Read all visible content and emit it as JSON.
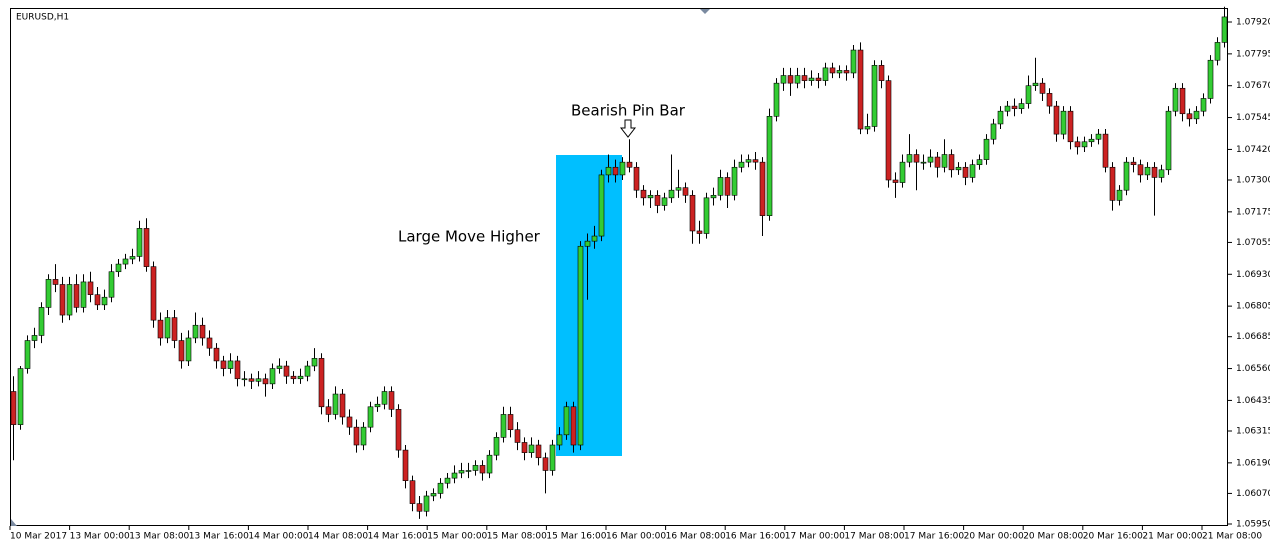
{
  "chart_data": {
    "type": "candlestick",
    "title": "EURUSD,H1",
    "annotations": [
      "Large Move Higher",
      "Bearish Pin Bar"
    ],
    "up_color": "#33cc33",
    "down_color": "#cc2222",
    "highlight_color": "#00bfff",
    "ylim": [
      1.0595,
      1.07975
    ],
    "yticks": [
      {
        "value": 1.0792,
        "label": "1.07920"
      },
      {
        "value": 1.07795,
        "label": "1.07795"
      },
      {
        "value": 1.0767,
        "label": "1.07670"
      },
      {
        "value": 1.07545,
        "label": "1.07545"
      },
      {
        "value": 1.0742,
        "label": "1.07420"
      },
      {
        "value": 1.073,
        "label": "1.07300"
      },
      {
        "value": 1.07175,
        "label": "1.07175"
      },
      {
        "value": 1.07055,
        "label": "1.07055"
      },
      {
        "value": 1.0693,
        "label": "1.06930"
      },
      {
        "value": 1.06805,
        "label": "1.06805"
      },
      {
        "value": 1.06685,
        "label": "1.06685"
      },
      {
        "value": 1.0656,
        "label": "1.06560"
      },
      {
        "value": 1.06435,
        "label": "1.06435"
      },
      {
        "value": 1.06315,
        "label": "1.06315"
      },
      {
        "value": 1.0619,
        "label": "1.06190"
      },
      {
        "value": 1.0607,
        "label": "1.06070"
      },
      {
        "value": 1.0595,
        "label": "1.05950"
      }
    ],
    "xticks": [
      "10 Mar 2017",
      "13 Mar 00:00",
      "13 Mar 08:00",
      "13 Mar 16:00",
      "14 Mar 00:00",
      "14 Mar 08:00",
      "14 Mar 16:00",
      "15 Mar 00:00",
      "15 Mar 08:00",
      "15 Mar 16:00",
      "16 Mar 00:00",
      "16 Mar 08:00",
      "16 Mar 16:00",
      "17 Mar 00:00",
      "17 Mar 08:00",
      "17 Mar 16:00",
      "20 Mar 00:00",
      "20 Mar 08:00",
      "20 Mar 16:00",
      "21 Mar 00:00",
      "21 Mar 08:00"
    ],
    "candles": [
      [
        1.0647,
        1.0653,
        1.062,
        1.0634
      ],
      [
        1.0634,
        1.0657,
        1.0632,
        1.0656
      ],
      [
        1.0656,
        1.0669,
        1.0654,
        1.0667
      ],
      [
        1.0667,
        1.0672,
        1.0664,
        1.0669
      ],
      [
        1.0669,
        1.0682,
        1.0666,
        1.068
      ],
      [
        1.068,
        1.0693,
        1.0677,
        1.0691
      ],
      [
        1.0691,
        1.0697,
        1.0686,
        1.0689
      ],
      [
        1.0689,
        1.0692,
        1.0674,
        1.0677
      ],
      [
        1.0677,
        1.0692,
        1.0675,
        1.0689
      ],
      [
        1.0689,
        1.0693,
        1.0678,
        1.068
      ],
      [
        1.068,
        1.0693,
        1.0678,
        1.069
      ],
      [
        1.069,
        1.0694,
        1.0682,
        1.0685
      ],
      [
        1.0685,
        1.0688,
        1.0679,
        1.0681
      ],
      [
        1.0681,
        1.0687,
        1.0679,
        1.0684
      ],
      [
        1.0684,
        1.0697,
        1.0682,
        1.0694
      ],
      [
        1.0694,
        1.0699,
        1.0692,
        1.0697
      ],
      [
        1.0697,
        1.0701,
        1.0695,
        1.0699
      ],
      [
        1.0699,
        1.0703,
        1.0697,
        1.07
      ],
      [
        1.07,
        1.0714,
        1.0698,
        1.0711
      ],
      [
        1.0711,
        1.0715,
        1.0694,
        1.0696
      ],
      [
        1.0696,
        1.0698,
        1.0672,
        1.0675
      ],
      [
        1.0675,
        1.0678,
        1.0665,
        1.0668
      ],
      [
        1.0668,
        1.0679,
        1.0666,
        1.0676
      ],
      [
        1.0676,
        1.0679,
        1.0664,
        1.0667
      ],
      [
        1.0667,
        1.067,
        1.0656,
        1.0659
      ],
      [
        1.0659,
        1.0671,
        1.0657,
        1.0668
      ],
      [
        1.0668,
        1.0678,
        1.0666,
        1.0673
      ],
      [
        1.0673,
        1.0676,
        1.0665,
        1.0668
      ],
      [
        1.0668,
        1.0671,
        1.0661,
        1.0664
      ],
      [
        1.0664,
        1.0666,
        1.0656,
        1.0659
      ],
      [
        1.0659,
        1.0661,
        1.0653,
        1.0656
      ],
      [
        1.0656,
        1.0662,
        1.0654,
        1.0659
      ],
      [
        1.0659,
        1.0661,
        1.0649,
        1.0652
      ],
      [
        1.0652,
        1.0655,
        1.0649,
        1.0652
      ],
      [
        1.0652,
        1.0654,
        1.0648,
        1.0651
      ],
      [
        1.0651,
        1.0655,
        1.0649,
        1.0652
      ],
      [
        1.0652,
        1.0654,
        1.0645,
        1.065
      ],
      [
        1.065,
        1.0658,
        1.0648,
        1.0656
      ],
      [
        1.0656,
        1.066,
        1.0654,
        1.0657
      ],
      [
        1.0657,
        1.0659,
        1.065,
        1.0653
      ],
      [
        1.0653,
        1.0655,
        1.065,
        1.0652
      ],
      [
        1.0652,
        1.0656,
        1.065,
        1.0653
      ],
      [
        1.0653,
        1.0659,
        1.0651,
        1.0657
      ],
      [
        1.0657,
        1.0664,
        1.0655,
        1.066
      ],
      [
        1.066,
        1.0662,
        1.0638,
        1.0641
      ],
      [
        1.0641,
        1.0644,
        1.0635,
        1.0638
      ],
      [
        1.0638,
        1.0649,
        1.0636,
        1.0646
      ],
      [
        1.0646,
        1.0648,
        1.0634,
        1.0637
      ],
      [
        1.0637,
        1.064,
        1.063,
        1.0633
      ],
      [
        1.0633,
        1.0636,
        1.0623,
        1.0626
      ],
      [
        1.0626,
        1.0635,
        1.0624,
        1.0633
      ],
      [
        1.0633,
        1.0643,
        1.0631,
        1.0641
      ],
      [
        1.0641,
        1.0645,
        1.0639,
        1.0642
      ],
      [
        1.0642,
        1.0649,
        1.064,
        1.0647
      ],
      [
        1.0647,
        1.0649,
        1.0637,
        1.064
      ],
      [
        1.064,
        1.0642,
        1.0621,
        1.0624
      ],
      [
        1.0624,
        1.0626,
        1.0609,
        1.0612
      ],
      [
        1.0612,
        1.0614,
        1.06,
        1.0603
      ],
      [
        1.0603,
        1.0606,
        1.0597,
        1.06
      ],
      [
        1.06,
        1.0608,
        1.0598,
        1.0606
      ],
      [
        1.0606,
        1.0609,
        1.0604,
        1.0607
      ],
      [
        1.0607,
        1.0613,
        1.0605,
        1.0611
      ],
      [
        1.0611,
        1.0615,
        1.0609,
        1.0613
      ],
      [
        1.0613,
        1.0618,
        1.0611,
        1.0615
      ],
      [
        1.0615,
        1.0619,
        1.0613,
        1.0616
      ],
      [
        1.0616,
        1.0619,
        1.0613,
        1.0616
      ],
      [
        1.0616,
        1.062,
        1.0614,
        1.0618
      ],
      [
        1.0618,
        1.062,
        1.0612,
        1.0615
      ],
      [
        1.0615,
        1.0624,
        1.0613,
        1.0622
      ],
      [
        1.0622,
        1.0631,
        1.062,
        1.0629
      ],
      [
        1.0629,
        1.0641,
        1.0627,
        1.0638
      ],
      [
        1.0638,
        1.0641,
        1.0629,
        1.0632
      ],
      [
        1.0632,
        1.0635,
        1.0624,
        1.0627
      ],
      [
        1.0627,
        1.0629,
        1.062,
        1.0623
      ],
      [
        1.0623,
        1.0629,
        1.0621,
        1.0626
      ],
      [
        1.0626,
        1.0628,
        1.0618,
        1.0621
      ],
      [
        1.0621,
        1.0623,
        1.0607,
        1.0616
      ],
      [
        1.0616,
        1.0628,
        1.0614,
        1.0626
      ],
      [
        1.0626,
        1.0633,
        1.0624,
        1.063
      ],
      [
        1.063,
        1.0643,
        1.0628,
        1.0641
      ],
      [
        1.0641,
        1.0643,
        1.0623,
        1.0626
      ],
      [
        1.0626,
        1.0706,
        1.0624,
        1.0704
      ],
      [
        1.0704,
        1.0709,
        1.0683,
        1.0706
      ],
      [
        1.0706,
        1.0712,
        1.0703,
        1.0708
      ],
      [
        1.0708,
        1.0734,
        1.0706,
        1.0732
      ],
      [
        1.0732,
        1.074,
        1.0729,
        1.0735
      ],
      [
        1.0735,
        1.0738,
        1.0729,
        1.0732
      ],
      [
        1.0732,
        1.0739,
        1.073,
        1.0737
      ],
      [
        1.0737,
        1.0746,
        1.0733,
        1.0735
      ],
      [
        1.0735,
        1.0737,
        1.0723,
        1.0726
      ],
      [
        1.0726,
        1.0728,
        1.072,
        1.0723
      ],
      [
        1.0723,
        1.0726,
        1.0719,
        1.0724
      ],
      [
        1.0724,
        1.0726,
        1.0717,
        1.072
      ],
      [
        1.072,
        1.0725,
        1.0718,
        1.0723
      ],
      [
        1.0723,
        1.074,
        1.0721,
        1.0726
      ],
      [
        1.0726,
        1.0734,
        1.0723,
        1.0727
      ],
      [
        1.0727,
        1.0729,
        1.0721,
        1.0724
      ],
      [
        1.0724,
        1.0726,
        1.0705,
        1.071
      ],
      [
        1.071,
        1.0714,
        1.0705,
        1.0709
      ],
      [
        1.0709,
        1.0725,
        1.0707,
        1.0723
      ],
      [
        1.0723,
        1.0727,
        1.072,
        1.0724
      ],
      [
        1.0724,
        1.0734,
        1.0722,
        1.0731
      ],
      [
        1.0731,
        1.0733,
        1.0719,
        1.0724
      ],
      [
        1.0724,
        1.0738,
        1.0722,
        1.0735
      ],
      [
        1.0735,
        1.074,
        1.0733,
        1.0737
      ],
      [
        1.0737,
        1.074,
        1.0735,
        1.0738
      ],
      [
        1.0738,
        1.0741,
        1.0734,
        1.0737
      ],
      [
        1.0737,
        1.0739,
        1.0708,
        1.0716
      ],
      [
        1.0716,
        1.0758,
        1.0714,
        1.0755
      ],
      [
        1.0755,
        1.077,
        1.0753,
        1.0768
      ],
      [
        1.0768,
        1.0774,
        1.0765,
        1.0771
      ],
      [
        1.0771,
        1.0774,
        1.0763,
        1.0768
      ],
      [
        1.0768,
        1.0774,
        1.0766,
        1.0771
      ],
      [
        1.0771,
        1.0774,
        1.0766,
        1.0769
      ],
      [
        1.0769,
        1.0773,
        1.0767,
        1.077
      ],
      [
        1.077,
        1.0772,
        1.0766,
        1.0769
      ],
      [
        1.0769,
        1.0776,
        1.0767,
        1.0774
      ],
      [
        1.0774,
        1.0776,
        1.077,
        1.0772
      ],
      [
        1.0772,
        1.0775,
        1.077,
        1.0773
      ],
      [
        1.0773,
        1.0775,
        1.0769,
        1.0772
      ],
      [
        1.0772,
        1.0783,
        1.077,
        1.0781
      ],
      [
        1.0781,
        1.0784,
        1.0748,
        1.075
      ],
      [
        1.075,
        1.0756,
        1.0748,
        1.0751
      ],
      [
        1.0751,
        1.0777,
        1.0749,
        1.0775
      ],
      [
        1.0775,
        1.0777,
        1.0766,
        1.0769
      ],
      [
        1.0769,
        1.0771,
        1.0727,
        1.073
      ],
      [
        1.073,
        1.0733,
        1.0723,
        1.0729
      ],
      [
        1.0729,
        1.074,
        1.0727,
        1.0737
      ],
      [
        1.0737,
        1.0748,
        1.0735,
        1.074
      ],
      [
        1.074,
        1.0742,
        1.0726,
        1.0737
      ],
      [
        1.0737,
        1.074,
        1.0734,
        1.0737
      ],
      [
        1.0737,
        1.0742,
        1.0735,
        1.0739
      ],
      [
        1.0739,
        1.0741,
        1.0731,
        1.0735
      ],
      [
        1.0735,
        1.0746,
        1.0733,
        1.074
      ],
      [
        1.074,
        1.0742,
        1.0731,
        1.0734
      ],
      [
        1.0734,
        1.0737,
        1.0732,
        1.0735
      ],
      [
        1.0735,
        1.0737,
        1.0728,
        1.0731
      ],
      [
        1.0731,
        1.0738,
        1.0729,
        1.0736
      ],
      [
        1.0736,
        1.074,
        1.0734,
        1.0738
      ],
      [
        1.0738,
        1.0748,
        1.0736,
        1.0746
      ],
      [
        1.0746,
        1.0754,
        1.0744,
        1.0752
      ],
      [
        1.0752,
        1.0759,
        1.075,
        1.0757
      ],
      [
        1.0757,
        1.0761,
        1.0755,
        1.0759
      ],
      [
        1.0759,
        1.0762,
        1.0755,
        1.0758
      ],
      [
        1.0758,
        1.0762,
        1.0756,
        1.076
      ],
      [
        1.076,
        1.0771,
        1.0758,
        1.0767
      ],
      [
        1.0767,
        1.0778,
        1.0765,
        1.0768
      ],
      [
        1.0768,
        1.077,
        1.0761,
        1.0764
      ],
      [
        1.0764,
        1.0766,
        1.0756,
        1.0759
      ],
      [
        1.0759,
        1.0761,
        1.0745,
        1.0748
      ],
      [
        1.0748,
        1.0759,
        1.0746,
        1.0757
      ],
      [
        1.0757,
        1.0759,
        1.0742,
        1.0745
      ],
      [
        1.0745,
        1.0747,
        1.074,
        1.0743
      ],
      [
        1.0743,
        1.0747,
        1.0741,
        1.0745
      ],
      [
        1.0745,
        1.0748,
        1.0743,
        1.0746
      ],
      [
        1.0746,
        1.075,
        1.0744,
        1.0748
      ],
      [
        1.0748,
        1.075,
        1.0733,
        1.0735
      ],
      [
        1.0735,
        1.0737,
        1.0718,
        1.0722
      ],
      [
        1.0722,
        1.0728,
        1.072,
        1.0726
      ],
      [
        1.0726,
        1.0739,
        1.0724,
        1.0737
      ],
      [
        1.0737,
        1.0739,
        1.0733,
        1.0736
      ],
      [
        1.0736,
        1.0738,
        1.0729,
        1.0732
      ],
      [
        1.0732,
        1.0737,
        1.073,
        1.0735
      ],
      [
        1.0735,
        1.0737,
        1.0716,
        1.0731
      ],
      [
        1.0731,
        1.0736,
        1.0729,
        1.0734
      ],
      [
        1.0734,
        1.0759,
        1.0732,
        1.0757
      ],
      [
        1.0757,
        1.0768,
        1.0755,
        1.0766
      ],
      [
        1.0766,
        1.0768,
        1.0753,
        1.0756
      ],
      [
        1.0756,
        1.0758,
        1.0751,
        1.0754
      ],
      [
        1.0754,
        1.0759,
        1.0752,
        1.0757
      ],
      [
        1.0757,
        1.0764,
        1.0755,
        1.0762
      ],
      [
        1.0762,
        1.0779,
        1.076,
        1.0777
      ],
      [
        1.0777,
        1.0786,
        1.0775,
        1.0784
      ],
      [
        1.0784,
        1.0798,
        1.0782,
        1.0794
      ]
    ]
  }
}
